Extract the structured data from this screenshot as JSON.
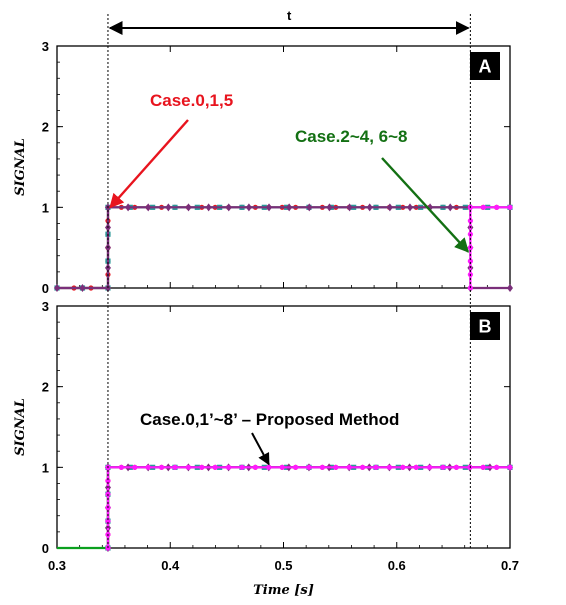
{
  "chart_data": [
    {
      "type": "line",
      "panel_label": "A",
      "ylabel": "SIGNAL",
      "xlabel": "",
      "xlim": [
        0.3,
        0.7
      ],
      "ylim": [
        0,
        3
      ],
      "yticks": [
        "0",
        "1",
        "2",
        "3"
      ],
      "interval_label": "t",
      "interval": [
        0.345,
        0.665
      ],
      "series": [
        {
          "color": "#e8141e",
          "marker": "circle",
          "x": [
            0.3,
            0.345,
            0.345,
            0.7
          ],
          "y": [
            0,
            0,
            1,
            1
          ]
        },
        {
          "color": "#2a9a9a",
          "marker": "square",
          "x": [
            0.3,
            0.345,
            0.345,
            0.7
          ],
          "y": [
            0,
            0,
            1,
            1
          ]
        },
        {
          "color": "#7a2f7a",
          "marker": "diamond",
          "x": [
            0.3,
            0.345,
            0.345,
            0.665,
            0.665,
            0.7
          ],
          "y": [
            0,
            0,
            1,
            1,
            0,
            0
          ]
        },
        {
          "color": "#ff1aff",
          "marker": "circle",
          "x": [
            0.665,
            0.665,
            0.7
          ],
          "y": [
            0,
            1,
            1
          ]
        }
      ],
      "annotations": [
        {
          "text": "Case.0,1,5",
          "color": "#e8141e",
          "target": [
            0.347,
            1.0
          ]
        },
        {
          "text": "Case.2~4, 6~8",
          "color": "#137013",
          "target": [
            0.663,
            0.45
          ]
        }
      ]
    },
    {
      "type": "line",
      "panel_label": "B",
      "ylabel": "SIGNAL",
      "xlabel": "Time [s]",
      "xlim": [
        0.3,
        0.7
      ],
      "ylim": [
        0,
        3
      ],
      "xticks": [
        "0.3",
        "0.4",
        "0.5",
        "0.6",
        "0.7"
      ],
      "yticks": [
        "0",
        "1",
        "2",
        "3"
      ],
      "series": [
        {
          "color": "#0aa01e",
          "marker": "none",
          "x": [
            0.3,
            0.345,
            0.345,
            0.7
          ],
          "y": [
            0,
            0,
            1,
            1
          ]
        },
        {
          "color": "#e8141e",
          "marker": "circle",
          "x": [
            0.345,
            0.345,
            0.7
          ],
          "y": [
            0,
            1,
            1
          ]
        },
        {
          "color": "#2a9a9a",
          "marker": "square",
          "x": [
            0.345,
            0.345,
            0.7
          ],
          "y": [
            0,
            1,
            1
          ]
        },
        {
          "color": "#7a2f7a",
          "marker": "diamond",
          "x": [
            0.345,
            0.345,
            0.7
          ],
          "y": [
            0,
            1,
            1
          ]
        },
        {
          "color": "#ff1aff",
          "marker": "circle",
          "x": [
            0.345,
            0.345,
            0.7
          ],
          "y": [
            0,
            1,
            1
          ]
        }
      ],
      "annotations": [
        {
          "text": "Case.0,1’~8’ – Proposed Method",
          "color": "#000000",
          "target": [
            0.48,
            1.0
          ]
        }
      ]
    }
  ]
}
